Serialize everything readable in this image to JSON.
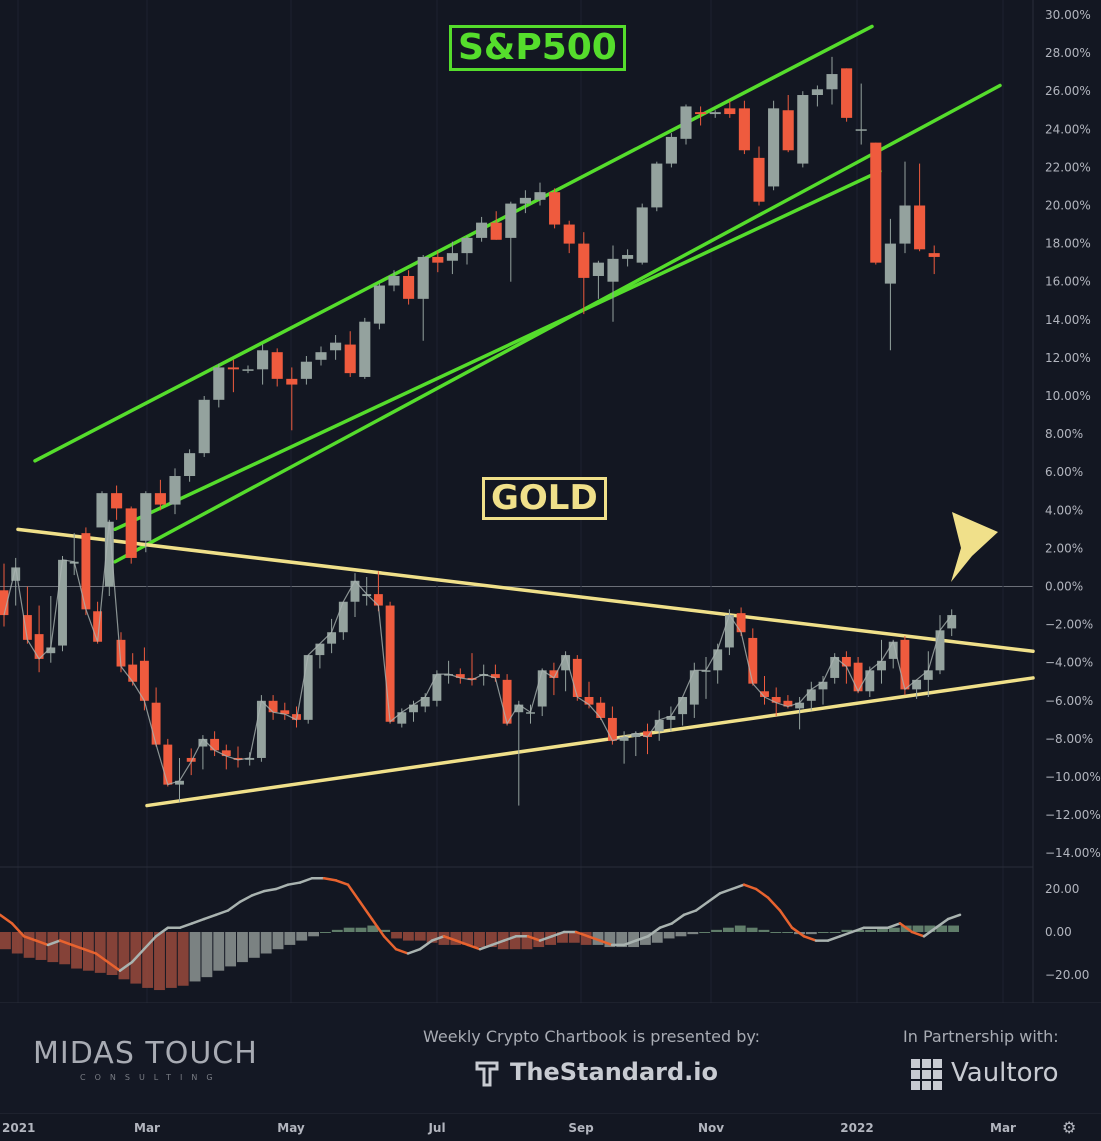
{
  "titles": {
    "sp500": "S&P500",
    "gold": "GOLD"
  },
  "footer": {
    "brand": "MIDAS TOUCH",
    "brand_sub": "CONSULTING",
    "presented_by": "Weekly Crypto Chartbook is presented by:",
    "sponsor": "TheStandard.io",
    "partnership": "In Partnership with:",
    "partner": "Vaultoro"
  },
  "colors": {
    "up": "#94a29e",
    "down": "#ef5b3e",
    "sp_channel": "#55dd2c",
    "gold_wedge": "#f0e08a",
    "bg": "#131722"
  },
  "icons": {
    "settings": "gear-icon",
    "sponsor": "standard-logo-icon",
    "partner": "vaultoro-grid-icon",
    "arrow": "arrow-annotation-icon"
  },
  "chart_data": {
    "type": "candlestick",
    "y_axis": {
      "ylim": [
        -14,
        30
      ],
      "ticks": [
        "30.00%",
        "28.00%",
        "26.00%",
        "24.00%",
        "22.00%",
        "20.00%",
        "18.00%",
        "16.00%",
        "14.00%",
        "12.00%",
        "10.00%",
        "8.00%",
        "6.00%",
        "4.00%",
        "2.00%",
        "0.00%",
        "−2.00%",
        "−4.00%",
        "−6.00%",
        "−8.00%",
        "−10.00%",
        "−12.00%",
        "−14.00%"
      ]
    },
    "x_axis": {
      "ticks": [
        "2021",
        "Mar",
        "May",
        "Jul",
        "Sep",
        "Nov",
        "2022",
        "Mar"
      ]
    },
    "series": [
      {
        "name": "S&P500",
        "candles": [
          [
            3.1,
            5.0,
            3.3,
            4.9
          ],
          [
            4.9,
            5.3,
            3.5,
            4.1
          ],
          [
            4.1,
            4.2,
            1.2,
            1.5
          ],
          [
            2.4,
            5.0,
            1.8,
            4.9
          ],
          [
            4.9,
            5.6,
            4.0,
            4.3
          ],
          [
            4.3,
            6.2,
            3.8,
            5.8
          ],
          [
            5.8,
            7.2,
            5.5,
            7.0
          ],
          [
            7.0,
            10.0,
            6.8,
            9.8
          ],
          [
            9.8,
            11.7,
            9.4,
            11.5
          ],
          [
            11.5,
            11.9,
            10.2,
            11.4
          ],
          [
            11.4,
            11.6,
            11.2,
            11.4
          ],
          [
            11.4,
            12.7,
            10.6,
            12.4
          ],
          [
            12.3,
            12.5,
            10.5,
            10.9
          ],
          [
            10.9,
            11.5,
            8.2,
            10.6
          ],
          [
            10.9,
            12.1,
            10.6,
            11.8
          ],
          [
            11.9,
            12.6,
            11.6,
            12.3
          ],
          [
            12.4,
            13.2,
            11.9,
            12.8
          ],
          [
            12.7,
            13.4,
            11.0,
            11.2
          ],
          [
            11.0,
            14.1,
            10.9,
            13.9
          ],
          [
            13.8,
            15.9,
            13.5,
            15.8
          ],
          [
            15.8,
            16.6,
            15.5,
            16.3
          ],
          [
            16.3,
            16.6,
            14.8,
            15.1
          ],
          [
            15.1,
            17.4,
            12.9,
            17.3
          ],
          [
            17.3,
            17.6,
            16.5,
            17.0
          ],
          [
            17.1,
            18.1,
            16.4,
            17.5
          ],
          [
            17.5,
            18.4,
            16.9,
            18.3
          ],
          [
            18.3,
            19.4,
            18.1,
            19.1
          ],
          [
            19.1,
            19.7,
            18.2,
            18.2
          ],
          [
            18.3,
            20.2,
            16.0,
            20.1
          ],
          [
            20.1,
            20.8,
            19.6,
            20.4
          ],
          [
            20.3,
            21.2,
            20.0,
            20.7
          ],
          [
            20.7,
            20.9,
            18.8,
            19.0
          ],
          [
            19.0,
            19.2,
            17.5,
            18.0
          ],
          [
            18.0,
            18.6,
            14.3,
            16.2
          ],
          [
            16.3,
            17.1,
            15.1,
            17.0
          ],
          [
            16.0,
            17.9,
            13.9,
            17.2
          ],
          [
            17.2,
            17.7,
            16.8,
            17.4
          ],
          [
            17.0,
            20.1,
            16.9,
            19.9
          ],
          [
            19.9,
            22.3,
            19.7,
            22.2
          ],
          [
            22.2,
            23.8,
            22.0,
            23.6
          ],
          [
            23.5,
            25.3,
            23.2,
            25.2
          ],
          [
            24.9,
            25.2,
            24.2,
            24.8
          ],
          [
            24.8,
            25.0,
            24.6,
            24.9
          ],
          [
            25.1,
            25.5,
            24.6,
            24.8
          ],
          [
            25.1,
            25.5,
            22.7,
            22.9
          ],
          [
            22.5,
            23.1,
            20.0,
            20.2
          ],
          [
            21.0,
            25.5,
            20.8,
            25.1
          ],
          [
            25.0,
            25.8,
            22.8,
            22.9
          ],
          [
            22.2,
            26.0,
            22.0,
            25.8
          ],
          [
            25.8,
            26.3,
            25.2,
            26.1
          ],
          [
            26.1,
            27.8,
            25.3,
            26.9
          ],
          [
            27.2,
            27.2,
            24.4,
            24.6
          ],
          [
            24.0,
            26.4,
            23.2,
            24.0
          ],
          [
            23.3,
            23.3,
            16.9,
            17.0
          ],
          [
            15.9,
            19.3,
            12.4,
            18.0
          ],
          [
            18.0,
            22.3,
            17.5,
            20.0
          ],
          [
            20.0,
            22.2,
            17.6,
            17.7
          ],
          [
            17.5,
            17.9,
            16.4,
            17.3
          ]
        ]
      },
      {
        "name": "GOLD",
        "candles": [
          [
            -0.2,
            1.2,
            -2.1,
            -1.5
          ],
          [
            0.3,
            1.5,
            -1.0,
            1.0
          ],
          [
            -1.5,
            0.0,
            -3.0,
            -2.8
          ],
          [
            -2.5,
            -1.0,
            -4.5,
            -3.8
          ],
          [
            -3.5,
            -0.5,
            -4.0,
            -3.2
          ],
          [
            -3.1,
            1.6,
            -3.4,
            1.4
          ],
          [
            1.2,
            2.8,
            0.6,
            1.3
          ],
          [
            2.8,
            3.1,
            -1.5,
            -1.2
          ],
          [
            -1.3,
            -0.8,
            -3.0,
            -2.9
          ],
          [
            0.0,
            3.5,
            -0.5,
            3.4
          ],
          [
            -2.8,
            -2.4,
            -4.5,
            -4.2
          ],
          [
            -4.1,
            -3.5,
            -5.2,
            -5.0
          ],
          [
            -3.9,
            -3.2,
            -6.5,
            -6.0
          ],
          [
            -6.1,
            -5.3,
            -8.4,
            -8.3
          ],
          [
            -8.3,
            -8.0,
            -10.5,
            -10.4
          ],
          [
            -10.4,
            -9.0,
            -11.3,
            -10.2
          ],
          [
            -9.0,
            -8.5,
            -9.9,
            -9.2
          ],
          [
            -8.4,
            -7.8,
            -9.6,
            -8.0
          ],
          [
            -8.0,
            -7.6,
            -8.9,
            -8.6
          ],
          [
            -8.6,
            -8.3,
            -9.6,
            -8.9
          ],
          [
            -9.0,
            -8.4,
            -9.5,
            -9.1
          ],
          [
            -9.1,
            -8.7,
            -9.4,
            -9.0
          ],
          [
            -9.0,
            -5.7,
            -9.2,
            -6.0
          ],
          [
            -6.0,
            -5.7,
            -7.0,
            -6.6
          ],
          [
            -6.5,
            -6.1,
            -7.0,
            -6.7
          ],
          [
            -6.7,
            -6.3,
            -7.4,
            -7.0
          ],
          [
            -7.0,
            -3.8,
            -7.2,
            -3.6
          ],
          [
            -3.6,
            -3.2,
            -4.3,
            -3.0
          ],
          [
            -3.0,
            -1.7,
            -3.5,
            -2.4
          ],
          [
            -2.4,
            -0.9,
            -2.8,
            -0.8
          ],
          [
            -0.8,
            0.7,
            -1.6,
            0.3
          ],
          [
            -0.5,
            0.5,
            -1.0,
            -0.4
          ],
          [
            -0.4,
            0.8,
            -1.3,
            -1.0
          ],
          [
            -1.0,
            -0.8,
            -7.2,
            -7.1
          ],
          [
            -7.2,
            -6.4,
            -7.4,
            -6.6
          ],
          [
            -6.6,
            -6.0,
            -7.1,
            -6.2
          ],
          [
            -6.3,
            -5.6,
            -6.6,
            -5.8
          ],
          [
            -6.0,
            -4.4,
            -6.3,
            -4.6
          ],
          [
            -4.6,
            -3.9,
            -5.1,
            -4.6
          ],
          [
            -4.6,
            -4.3,
            -5.1,
            -4.8
          ],
          [
            -4.8,
            -3.5,
            -5.2,
            -4.9
          ],
          [
            -4.7,
            -4.1,
            -5.2,
            -4.6
          ],
          [
            -4.6,
            -4.1,
            -5.0,
            -4.8
          ],
          [
            -4.9,
            -4.6,
            -7.3,
            -7.2
          ],
          [
            -6.6,
            -6.0,
            -11.5,
            -6.2
          ],
          [
            -6.6,
            -6.2,
            -7.2,
            -6.6
          ],
          [
            -6.3,
            -4.3,
            -6.8,
            -4.4
          ],
          [
            -4.4,
            -4.0,
            -5.7,
            -4.8
          ],
          [
            -4.4,
            -3.4,
            -5.5,
            -3.6
          ],
          [
            -3.8,
            -3.6,
            -6.0,
            -5.8
          ],
          [
            -5.8,
            -5.0,
            -6.4,
            -6.2
          ],
          [
            -6.1,
            -5.8,
            -7.0,
            -6.9
          ],
          [
            -6.9,
            -6.3,
            -8.3,
            -8.1
          ],
          [
            -8.1,
            -7.6,
            -9.3,
            -7.9
          ],
          [
            -7.9,
            -7.6,
            -8.9,
            -7.7
          ],
          [
            -7.6,
            -7.2,
            -8.8,
            -7.9
          ],
          [
            -7.6,
            -6.5,
            -8.1,
            -7.0
          ],
          [
            -7.0,
            -6.3,
            -7.6,
            -6.8
          ],
          [
            -6.7,
            -6.0,
            -7.3,
            -5.8
          ],
          [
            -6.2,
            -4.0,
            -6.9,
            -4.4
          ],
          [
            -4.4,
            -3.7,
            -5.9,
            -4.4
          ],
          [
            -4.4,
            -3.0,
            -5.1,
            -3.3
          ],
          [
            -3.2,
            -1.2,
            -3.6,
            -1.5
          ],
          [
            -1.4,
            -1.1,
            -2.6,
            -2.4
          ],
          [
            -2.7,
            -2.2,
            -5.2,
            -5.1
          ],
          [
            -5.5,
            -4.7,
            -6.2,
            -5.8
          ],
          [
            -5.8,
            -5.3,
            -6.8,
            -6.1
          ],
          [
            -6.0,
            -5.7,
            -6.4,
            -6.3
          ],
          [
            -6.4,
            -5.8,
            -7.5,
            -6.1
          ],
          [
            -6.0,
            -5.0,
            -6.5,
            -5.4
          ],
          [
            -5.4,
            -4.7,
            -6.2,
            -5.0
          ],
          [
            -4.8,
            -3.5,
            -5.1,
            -3.7
          ],
          [
            -3.7,
            -3.4,
            -5.1,
            -4.2
          ],
          [
            -4.0,
            -3.7,
            -5.6,
            -5.5
          ],
          [
            -5.5,
            -4.2,
            -5.8,
            -4.4
          ],
          [
            -4.4,
            -2.8,
            -5.1,
            -3.9
          ],
          [
            -3.8,
            -2.8,
            -4.3,
            -2.9
          ],
          [
            -2.8,
            -2.6,
            -5.7,
            -5.4
          ],
          [
            -5.4,
            -4.9,
            -5.9,
            -4.9
          ],
          [
            -4.9,
            -3.4,
            -5.8,
            -4.4
          ],
          [
            -4.4,
            -1.5,
            -4.6,
            -2.3
          ],
          [
            -2.2,
            -1.2,
            -2.6,
            -1.5
          ]
        ]
      }
    ],
    "lines": [
      {
        "name": "sp-channel-upper",
        "points": [
          [
            0,
            6.6
          ],
          [
            56,
            29.4
          ]
        ]
      },
      {
        "name": "sp-channel-lower",
        "points": [
          [
            7,
            1.3
          ],
          [
            66,
            26.3
          ]
        ]
      },
      {
        "name": "sp-channel-mid",
        "points": [
          [
            5,
            3.0
          ],
          [
            52,
            21.8
          ]
        ]
      },
      {
        "name": "gold-wedge-upper",
        "points": [
          [
            0,
            3.0
          ],
          [
            66,
            -3.4
          ]
        ]
      },
      {
        "name": "gold-wedge-lower",
        "points": [
          [
            9,
            -11.5
          ],
          [
            66,
            -4.8
          ]
        ]
      }
    ],
    "oscillator": {
      "ylim": [
        -27,
        27
      ],
      "ticks": [
        "20.00",
        "0.00",
        "−20.00"
      ],
      "histogram": [
        -8,
        -10,
        -12,
        -13,
        -14,
        -15,
        -17,
        -18,
        -19,
        -20,
        -22,
        -24,
        -26,
        -27,
        -26,
        -25,
        -23,
        -21,
        -18,
        -16,
        -14,
        -12,
        -10,
        -8,
        -6,
        -4,
        -2,
        0,
        1,
        2,
        2,
        3,
        1,
        -3,
        -4,
        -4,
        -5,
        -6,
        -6,
        -6,
        -7,
        -7,
        -8,
        -8,
        -8,
        -7,
        -6,
        -5,
        -5,
        -6,
        -6,
        -7,
        -7,
        -7,
        -6,
        -5,
        -3,
        -2,
        -1,
        0,
        1,
        2,
        3,
        2,
        1,
        0,
        0,
        -1,
        -1,
        0,
        0,
        1,
        1,
        1,
        2,
        2,
        3,
        3,
        3,
        3,
        3
      ],
      "line": [
        8,
        4,
        -2,
        -4,
        -6,
        -4,
        -6,
        -8,
        -10,
        -14,
        -18,
        -14,
        -8,
        -2,
        2,
        2,
        4,
        6,
        8,
        10,
        14,
        17,
        19,
        20,
        22,
        23,
        25,
        25,
        24,
        22,
        14,
        6,
        -2,
        -8,
        -10,
        -8,
        -4,
        -2,
        -4,
        -6,
        -8,
        -6,
        -4,
        -2,
        -2,
        -4,
        -2,
        0,
        0,
        -2,
        -4,
        -6,
        -6,
        -4,
        -2,
        2,
        4,
        8,
        10,
        14,
        18,
        20,
        22,
        20,
        16,
        10,
        2,
        -2,
        -4,
        -4,
        -2,
        0,
        2,
        2,
        2,
        4,
        0,
        -2,
        2,
        6,
        8
      ]
    }
  }
}
